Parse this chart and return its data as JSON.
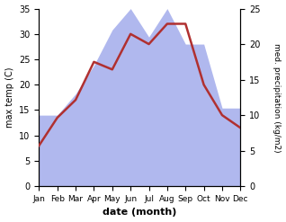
{
  "months": [
    "Jan",
    "Feb",
    "Mar",
    "Apr",
    "May",
    "Jun",
    "Jul",
    "Aug",
    "Sep",
    "Oct",
    "Nov",
    "Dec"
  ],
  "temperature": [
    8,
    13.5,
    17,
    24.5,
    23,
    30,
    28,
    32,
    32,
    20,
    14,
    11.5
  ],
  "precipitation": [
    10,
    10,
    13,
    17,
    22,
    25,
    21,
    25,
    20,
    20,
    11,
    11
  ],
  "temp_color": "#b03030",
  "precip_color": "#b0b8ee",
  "title": "",
  "xlabel": "date (month)",
  "ylabel_left": "max temp (C)",
  "ylabel_right": "med. precipitation (kg/m2)",
  "ylim_left": [
    0,
    35
  ],
  "ylim_right": [
    0,
    25
  ],
  "yticks_left": [
    0,
    5,
    10,
    15,
    20,
    25,
    30,
    35
  ],
  "yticks_right": [
    0,
    5,
    10,
    15,
    20,
    25
  ],
  "bg_color": "#ffffff",
  "temp_linewidth": 1.8
}
